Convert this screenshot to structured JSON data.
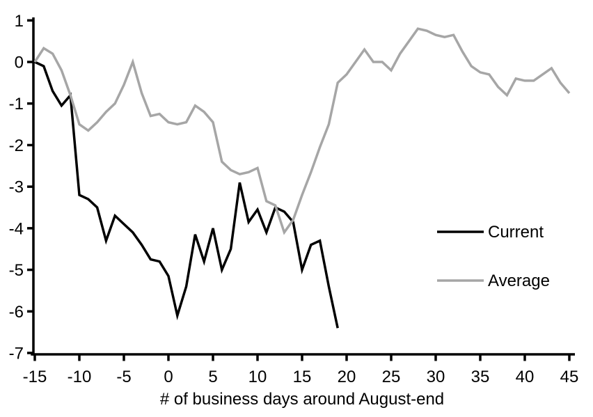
{
  "chart_data": {
    "type": "line",
    "title": "",
    "xlabel": "# of business days around August-end",
    "ylabel": "",
    "xlim": [
      -15,
      45
    ],
    "ylim": [
      -7,
      1
    ],
    "x_ticks": [
      -15,
      -10,
      -5,
      0,
      5,
      10,
      15,
      20,
      25,
      30,
      35,
      40,
      45
    ],
    "y_ticks": [
      1,
      0,
      -1,
      -2,
      -3,
      -4,
      -5,
      -6,
      -7
    ],
    "grid": false,
    "background_color": "#ffffff",
    "axis_color": "#000000",
    "legend_position": "right-middle",
    "series": [
      {
        "name": "Current",
        "color": "#000000",
        "x": [
          -15,
          -14,
          -13,
          -12,
          -11,
          -10,
          -9,
          -8,
          -7,
          -6,
          -5,
          -4,
          -3,
          -2,
          -1,
          0,
          1,
          2,
          3,
          4,
          5,
          6,
          7,
          8,
          9,
          10,
          11,
          12,
          13,
          14,
          15,
          16,
          17,
          18,
          19
        ],
        "y": [
          0,
          -0.1,
          -0.7,
          -1.05,
          -0.8,
          -3.2,
          -3.3,
          -3.5,
          -4.3,
          -3.7,
          -3.9,
          -4.1,
          -4.4,
          -4.75,
          -4.8,
          -5.15,
          -6.1,
          -5.4,
          -4.15,
          -4.8,
          -4,
          -5,
          -4.5,
          -2.9,
          -3.85,
          -3.55,
          -4.1,
          -3.5,
          -3.6,
          -3.85,
          -5,
          -4.4,
          -4.3,
          -5.4,
          -6.4
        ]
      },
      {
        "name": "Average",
        "color": "#a6a6a6",
        "x": [
          -15,
          -14,
          -13,
          -12,
          -11,
          -10,
          -9,
          -8,
          -7,
          -6,
          -5,
          -4,
          -3,
          -2,
          -1,
          0,
          1,
          2,
          3,
          4,
          5,
          6,
          7,
          8,
          9,
          10,
          11,
          12,
          13,
          14,
          15,
          16,
          17,
          18,
          19,
          20,
          21,
          22,
          23,
          24,
          25,
          26,
          27,
          28,
          29,
          30,
          31,
          32,
          33,
          34,
          35,
          36,
          37,
          38,
          39,
          40,
          41,
          42,
          43,
          44,
          45
        ],
        "y": [
          0,
          0.33,
          0.2,
          -0.2,
          -0.8,
          -1.5,
          -1.65,
          -1.45,
          -1.2,
          -1,
          -0.55,
          0,
          -0.75,
          -1.3,
          -1.25,
          -1.45,
          -1.5,
          -1.45,
          -1.05,
          -1.2,
          -1.45,
          -2.4,
          -2.6,
          -2.7,
          -2.65,
          -2.55,
          -3.35,
          -3.45,
          -4.1,
          -3.8,
          -3.2,
          -2.65,
          -2.05,
          -1.5,
          -0.5,
          -0.3,
          0,
          0.3,
          0,
          0,
          -0.2,
          0.2,
          0.5,
          0.8,
          0.75,
          0.65,
          0.6,
          0.65,
          0.25,
          -0.1,
          -0.25,
          -0.3,
          -0.6,
          -0.8,
          -0.4,
          -0.45,
          -0.45,
          -0.3,
          -0.15,
          -0.5,
          -0.75
        ]
      }
    ]
  },
  "legend": {
    "items": [
      {
        "label": "Current"
      },
      {
        "label": "Average"
      }
    ]
  }
}
